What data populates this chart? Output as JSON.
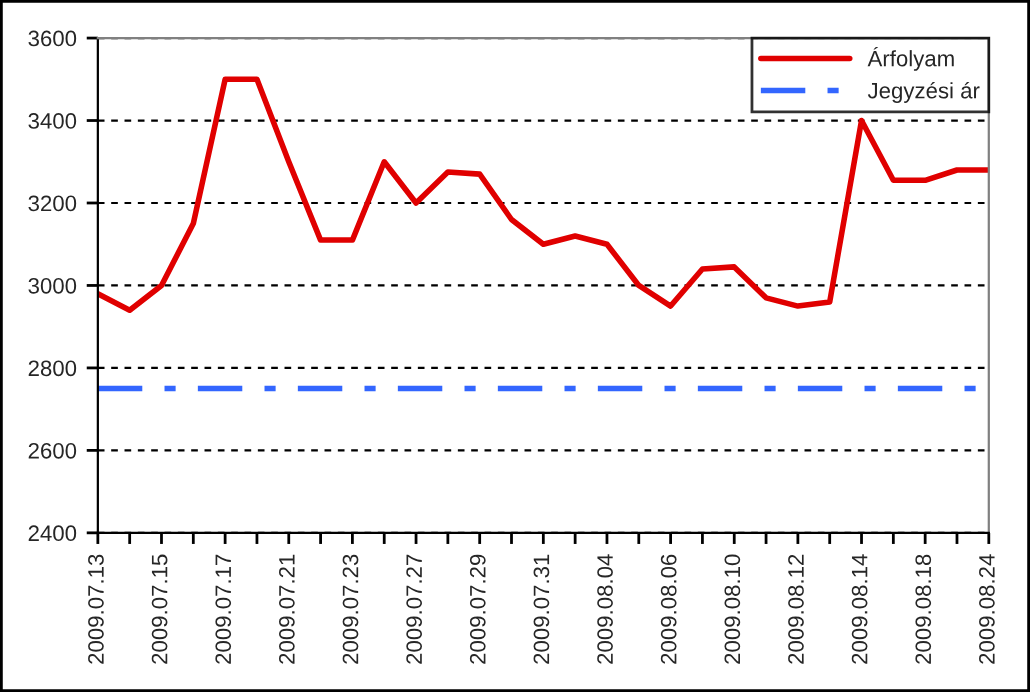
{
  "chart_data": {
    "type": "line",
    "categories": [
      "2009.07.13",
      null,
      "2009.07.15",
      null,
      "2009.07.17",
      null,
      "2009.07.21",
      null,
      "2009.07.23",
      null,
      "2009.07.27",
      null,
      "2009.07.29",
      null,
      "2009.07.31",
      null,
      "2009.08.04",
      null,
      "2009.08.06",
      null,
      "2009.08.10",
      null,
      "2009.08.12",
      null,
      "2009.08.14",
      null,
      "2009.08.18",
      null,
      "2009.08.24"
    ],
    "series": [
      {
        "name": "Árfolyam",
        "color": "#e00000",
        "line_style": "solid",
        "values": [
          2980,
          2940,
          3000,
          3150,
          3500,
          3500,
          3300,
          3110,
          3110,
          3300,
          3200,
          3275,
          3270,
          3160,
          3100,
          3120,
          3100,
          3000,
          2950,
          3040,
          3045,
          2970,
          2950,
          2960,
          3400,
          3255,
          3255,
          3280,
          3280
        ]
      },
      {
        "name": "Jegyzési ár",
        "color": "#3366ff",
        "line_style": "dashed",
        "values": [
          2750,
          2750,
          2750,
          2750,
          2750,
          2750,
          2750,
          2750,
          2750,
          2750,
          2750,
          2750,
          2750,
          2750,
          2750,
          2750,
          2750,
          2750,
          2750,
          2750,
          2750,
          2750,
          2750,
          2750,
          2750,
          2750,
          2750,
          2750,
          2750
        ]
      }
    ],
    "ylim": [
      2400,
      3600
    ],
    "yticks": [
      2400,
      2600,
      2800,
      3000,
      3200,
      3400,
      3600
    ],
    "grid": "y",
    "legend": "top right"
  }
}
